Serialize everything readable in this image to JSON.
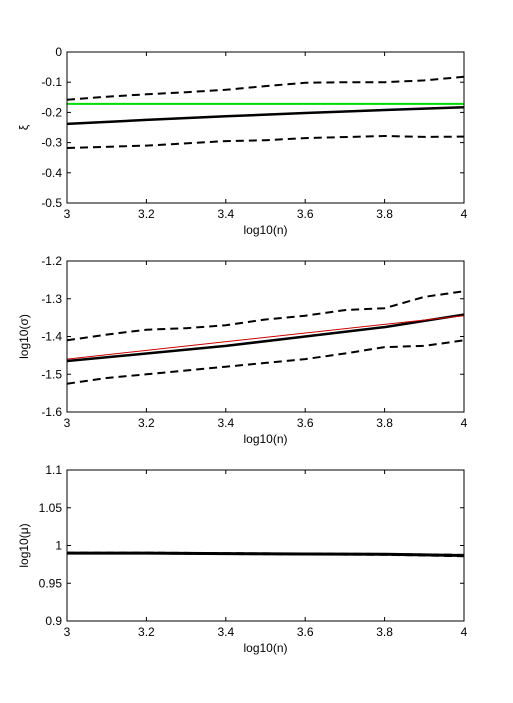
{
  "chart_data": [
    {
      "type": "line",
      "title": "",
      "xlabel": "log10(n)",
      "ylabel": "ξ",
      "xlim": [
        3,
        4
      ],
      "ylim": [
        -0.5,
        0
      ],
      "xticks": [
        "3",
        "3.2",
        "3.4",
        "3.6",
        "3.8",
        "4"
      ],
      "yticks": [
        "-0.5",
        "-0.4",
        "-0.3",
        "-0.2",
        "-0.1",
        "0"
      ],
      "grid": false,
      "series": [
        {
          "color": "#00dd00",
          "style": "solid",
          "width": 2,
          "x": [
            3,
            4
          ],
          "y": [
            -0.172,
            -0.172
          ]
        },
        {
          "color": "#000000",
          "style": "solid",
          "width": 2.5,
          "x": [
            3,
            3.2,
            3.4,
            3.6,
            3.8,
            4
          ],
          "y": [
            -0.238,
            -0.225,
            -0.213,
            -0.202,
            -0.192,
            -0.183
          ]
        },
        {
          "color": "#000000",
          "style": "dashed",
          "width": 2,
          "x": [
            3,
            3.1,
            3.2,
            3.3,
            3.4,
            3.5,
            3.6,
            3.7,
            3.8,
            3.9,
            4
          ],
          "y": [
            -0.158,
            -0.148,
            -0.14,
            -0.133,
            -0.125,
            -0.113,
            -0.102,
            -0.1,
            -0.1,
            -0.094,
            -0.082
          ]
        },
        {
          "color": "#000000",
          "style": "dashed",
          "width": 2,
          "x": [
            3,
            3.2,
            3.4,
            3.5,
            3.6,
            3.8,
            3.9,
            4
          ],
          "y": [
            -0.318,
            -0.31,
            -0.295,
            -0.292,
            -0.285,
            -0.278,
            -0.281,
            -0.28
          ]
        }
      ]
    },
    {
      "type": "line",
      "title": "",
      "xlabel": "log10(n)",
      "ylabel": "log10(σ)",
      "xlim": [
        3,
        4
      ],
      "ylim": [
        -1.6,
        -1.2
      ],
      "xticks": [
        "3",
        "3.2",
        "3.4",
        "3.6",
        "3.8",
        "4"
      ],
      "yticks": [
        "-1.6",
        "-1.5",
        "-1.4",
        "-1.3",
        "-1.2"
      ],
      "grid": false,
      "series": [
        {
          "color": "#000000",
          "style": "solid",
          "width": 2.5,
          "x": [
            3,
            3.2,
            3.4,
            3.6,
            3.8,
            4
          ],
          "y": [
            -1.465,
            -1.445,
            -1.425,
            -1.4,
            -1.375,
            -1.342
          ]
        },
        {
          "color": "#cc0000",
          "style": "solid",
          "width": 1,
          "x": [
            3,
            4
          ],
          "y": [
            -1.46,
            -1.345
          ]
        },
        {
          "color": "#000000",
          "style": "dashed",
          "width": 2,
          "x": [
            3,
            3.1,
            3.2,
            3.3,
            3.4,
            3.5,
            3.6,
            3.7,
            3.8,
            3.9,
            4
          ],
          "y": [
            -1.41,
            -1.395,
            -1.382,
            -1.378,
            -1.37,
            -1.355,
            -1.345,
            -1.33,
            -1.325,
            -1.295,
            -1.28
          ]
        },
        {
          "color": "#000000",
          "style": "dashed",
          "width": 2,
          "x": [
            3,
            3.1,
            3.2,
            3.3,
            3.4,
            3.5,
            3.6,
            3.7,
            3.8,
            3.9,
            4
          ],
          "y": [
            -1.525,
            -1.51,
            -1.5,
            -1.49,
            -1.48,
            -1.47,
            -1.46,
            -1.445,
            -1.428,
            -1.425,
            -1.41
          ]
        }
      ]
    },
    {
      "type": "line",
      "title": "",
      "xlabel": "log10(n)",
      "ylabel": "log10(μ)",
      "xlim": [
        3,
        4
      ],
      "ylim": [
        0.9,
        1.1
      ],
      "xticks": [
        "3",
        "3.2",
        "3.4",
        "3.6",
        "3.8",
        "4"
      ],
      "yticks": [
        "0.9",
        "0.95",
        "1",
        "1.05",
        "1.1"
      ],
      "grid": false,
      "series": [
        {
          "color": "#000000",
          "style": "dashed",
          "width": 2,
          "x": [
            3,
            3.2,
            3.4,
            3.6,
            3.8,
            4
          ],
          "y": [
            0.9905,
            0.9905,
            0.9898,
            0.9893,
            0.9888,
            0.9875
          ]
        },
        {
          "color": "#000000",
          "style": "dashed",
          "width": 2,
          "x": [
            3,
            3.2,
            3.4,
            3.6,
            3.8,
            4
          ],
          "y": [
            0.9898,
            0.9895,
            0.9887,
            0.9883,
            0.9877,
            0.9858
          ]
        },
        {
          "color": "#000000",
          "style": "solid",
          "width": 3,
          "x": [
            3,
            3.2,
            3.4,
            3.6,
            3.8,
            4
          ],
          "y": [
            0.99,
            0.9899,
            0.9893,
            0.9888,
            0.9884,
            0.9868
          ]
        }
      ]
    }
  ]
}
